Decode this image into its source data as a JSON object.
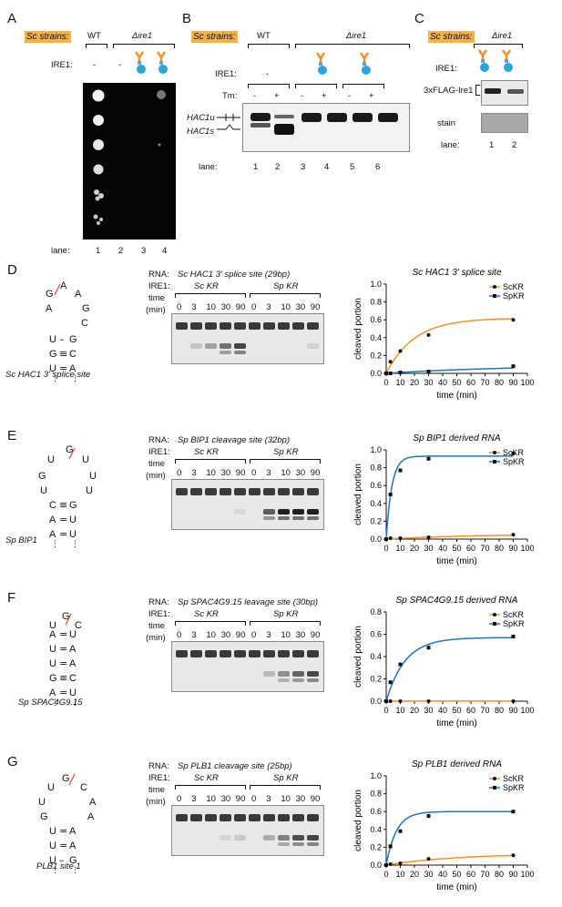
{
  "panelA": {
    "letter": "A",
    "strain_label": "Sc strains:",
    "wt": "WT",
    "mutant": "Δire1",
    "ire1_label": "IRE1:",
    "ire1_values": [
      "-",
      "-"
    ],
    "lane_label": "lane:",
    "lanes": [
      "1",
      "2",
      "3",
      "4"
    ]
  },
  "panelB": {
    "letter": "B",
    "strain_label": "Sc strains:",
    "wt": "WT",
    "mutant": "Δire1",
    "ire1_label": "IRE1:",
    "ire1_value": "-",
    "tm_label": "Tm:",
    "tm_values": [
      "-",
      "+",
      "-",
      "+",
      "-",
      "+"
    ],
    "hac1u": "HAC1u",
    "hac1s": "HAC1s",
    "lane_label": "lane:",
    "lanes": [
      "1",
      "2",
      "3",
      "4",
      "5",
      "6"
    ]
  },
  "panelC": {
    "letter": "C",
    "strain_label": "Sc strains:",
    "mutant": "Δire1",
    "ire1_label": "IRE1:",
    "flag_label": "3xFLAG-Ire1",
    "stain_label": "stain",
    "lane_label": "lane:",
    "lanes": [
      "1",
      "2"
    ]
  },
  "rows": [
    {
      "letter": "D",
      "rna_title": "Sc HAC1 3' splice site (29bp)",
      "structure_caption": "Sc HAC1 3' splice site",
      "chart_title": "Sc HAC1 3' splice site"
    },
    {
      "letter": "E",
      "rna_title": "Sp BIP1 cleavage site (32bp)",
      "structure_caption": "Sp BIP1",
      "chart_title": "Sp BIP1 derived RNA"
    },
    {
      "letter": "F",
      "rna_title": "Sp SPAC4G9.15 leavage site (30bp)",
      "structure_caption": "Sp SPAC4G9.15",
      "chart_title": "Sp SPAC4G9.15 derived RNA"
    },
    {
      "letter": "G",
      "rna_title": "Sp PLB1 cleavage site (25bp)",
      "structure_caption": "PLB1 site 1",
      "chart_title": "Sp PLB1 derived RNA"
    }
  ],
  "gel_common": {
    "rna_label": "RNA:",
    "ire1_label": "IRE1:",
    "time_label": "time",
    "min_label": "(min)",
    "sc_kr": "Sc KR",
    "sp_kr": "Sp KR",
    "times": [
      "0",
      "3",
      "10",
      "30",
      "90",
      "0",
      "3",
      "10",
      "30",
      "90"
    ]
  },
  "colors": {
    "sc_series": "#f0922b",
    "sp_series": "#1f77b4",
    "strain_bg": "#f3b24a",
    "cleave_mark": "#e0483b"
  },
  "chart_data": [
    {
      "type": "line",
      "title": "Sc HAC1 3' splice site",
      "xlabel": "time (min)",
      "ylabel": "cleaved portion",
      "xlim": [
        0,
        100
      ],
      "ylim": [
        0,
        1.0
      ],
      "xticks": [
        0,
        10,
        20,
        30,
        40,
        50,
        60,
        70,
        80,
        90,
        100
      ],
      "yticks": [
        0.0,
        0.2,
        0.4,
        0.6,
        0.8,
        1.0
      ],
      "legend": "top-right",
      "series": [
        {
          "name": "ScKR",
          "x": [
            0,
            3,
            10,
            30,
            90
          ],
          "y": [
            0.0,
            0.13,
            0.25,
            0.43,
            0.6
          ],
          "fit": [
            0.62,
            0.05
          ]
        },
        {
          "name": "SpKR",
          "x": [
            0,
            3,
            10,
            30,
            90
          ],
          "y": [
            0.0,
            0.0,
            0.01,
            0.02,
            0.08
          ],
          "fit": [
            0.09,
            0.012
          ]
        }
      ]
    },
    {
      "type": "line",
      "title": "Sp BIP1 derived RNA",
      "xlabel": "time (min)",
      "ylabel": "cleaved portion",
      "xlim": [
        0,
        100
      ],
      "ylim": [
        0,
        1.0
      ],
      "xticks": [
        0,
        10,
        20,
        30,
        40,
        50,
        60,
        70,
        80,
        90,
        100
      ],
      "yticks": [
        0.0,
        0.2,
        0.4,
        0.6,
        0.8,
        1.0
      ],
      "legend": "top-right",
      "series": [
        {
          "name": "ScKR",
          "x": [
            0,
            3,
            10,
            30,
            90
          ],
          "y": [
            0.0,
            0.01,
            0.01,
            0.02,
            0.05
          ],
          "fit": [
            0.06,
            0.015
          ]
        },
        {
          "name": "SpKR",
          "x": [
            0,
            3,
            10,
            30,
            90
          ],
          "y": [
            0.0,
            0.5,
            0.77,
            0.9,
            0.96
          ],
          "fit": [
            0.93,
            0.25
          ]
        }
      ]
    },
    {
      "type": "line",
      "title": "Sp SPAC4G9.15 derived RNA",
      "xlabel": "time (min)",
      "ylabel": "cleaved portion",
      "xlim": [
        0,
        100
      ],
      "ylim": [
        0,
        0.8
      ],
      "xticks": [
        0,
        10,
        20,
        30,
        40,
        50,
        60,
        70,
        80,
        90,
        100
      ],
      "yticks": [
        0.0,
        0.2,
        0.4,
        0.6,
        0.8
      ],
      "legend": "top-right",
      "series": [
        {
          "name": "ScKR",
          "x": [
            0,
            3,
            10,
            30,
            90
          ],
          "y": [
            0.0,
            0.0,
            0.0,
            0.0,
            0.0
          ],
          "fit": [
            0.001,
            0.05
          ]
        },
        {
          "name": "SpKR",
          "x": [
            0,
            3,
            10,
            30,
            90
          ],
          "y": [
            0.0,
            0.17,
            0.33,
            0.48,
            0.58
          ],
          "fit": [
            0.57,
            0.075
          ]
        }
      ]
    },
    {
      "type": "line",
      "title": "Sp PLB1 derived RNA",
      "xlabel": "time (min)",
      "ylabel": "cleaved portion",
      "xlim": [
        0,
        100
      ],
      "ylim": [
        0,
        1.0
      ],
      "xticks": [
        0,
        10,
        20,
        30,
        40,
        50,
        60,
        70,
        80,
        90,
        100
      ],
      "yticks": [
        0.0,
        0.2,
        0.4,
        0.6,
        0.8,
        1.0
      ],
      "legend": "top-right",
      "series": [
        {
          "name": "ScKR",
          "x": [
            0,
            3,
            10,
            30,
            90
          ],
          "y": [
            0.0,
            0.01,
            0.02,
            0.07,
            0.11
          ],
          "fit": [
            0.13,
            0.02
          ]
        },
        {
          "name": "SpKR",
          "x": [
            0,
            3,
            10,
            30,
            90
          ],
          "y": [
            0.0,
            0.21,
            0.38,
            0.55,
            0.6
          ],
          "fit": [
            0.6,
            0.14
          ]
        }
      ]
    }
  ]
}
